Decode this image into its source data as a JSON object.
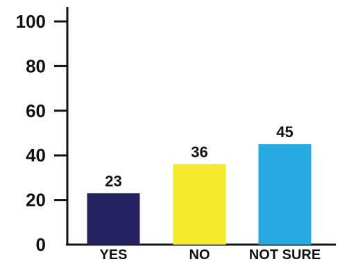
{
  "chart_data": {
    "type": "bar",
    "categories": [
      "YES",
      "NO",
      "NOT SURE"
    ],
    "values": [
      23,
      36,
      45
    ],
    "value_labels": [
      "23",
      "36",
      "45"
    ],
    "colors": [
      "#262262",
      "#F2EA2B",
      "#26A9E0"
    ],
    "ylim": [
      0,
      100
    ],
    "yticks": [
      0,
      20,
      40,
      60,
      80,
      100
    ],
    "ytick_labels": [
      "0",
      "20",
      "40",
      "60",
      "80",
      "100"
    ],
    "grid": false,
    "legend": "none"
  }
}
